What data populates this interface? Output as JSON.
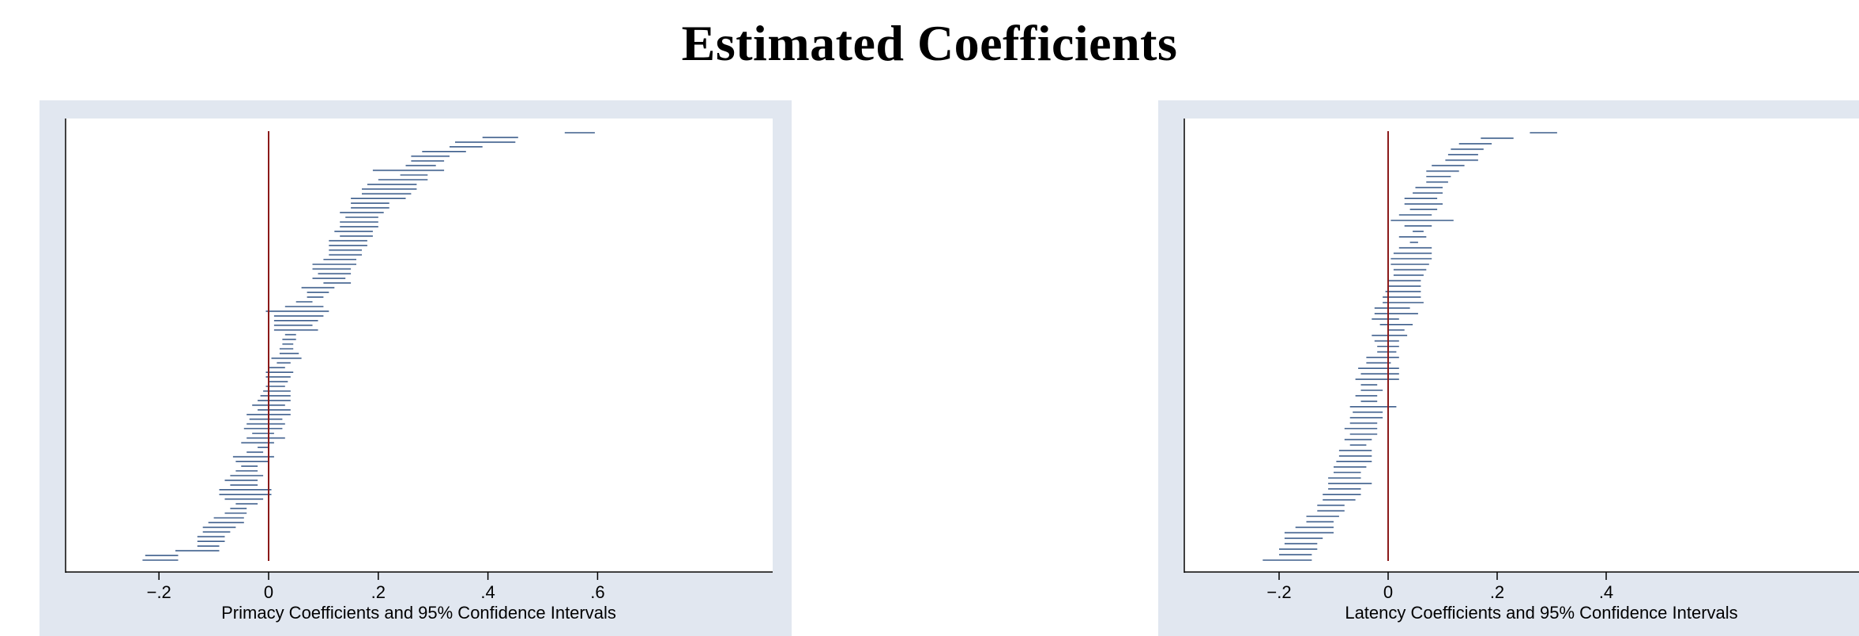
{
  "page": {
    "title": "Estimated Coefficients"
  },
  "colors": {
    "panel_bg": "#e1e7f0",
    "plot_bg": "#ffffff",
    "ci_line": "#3d5e8c",
    "zero_line": "#8b1a1a",
    "axis": "#000000"
  },
  "chart_data": [
    {
      "type": "interval",
      "title": "",
      "xlabel": "Primacy Coefficients and 95% Confidence Intervals",
      "ylabel": "",
      "xlim": [
        -0.25,
        0.615
      ],
      "xticks": [
        -0.2,
        0,
        0.2,
        0.4,
        0.6
      ],
      "xtick_labels": [
        "−.2",
        "0",
        ".2",
        ".4",
        ".6"
      ],
      "reference_line_x": 0,
      "grid": false,
      "note": "95% confidence intervals ordered top to bottom",
      "intervals": [
        [
          0.54,
          0.595
        ],
        [
          0.39,
          0.455
        ],
        [
          0.34,
          0.45
        ],
        [
          0.33,
          0.39
        ],
        [
          0.28,
          0.36
        ],
        [
          0.26,
          0.33
        ],
        [
          0.26,
          0.32
        ],
        [
          0.25,
          0.305
        ],
        [
          0.19,
          0.32
        ],
        [
          0.24,
          0.29
        ],
        [
          0.2,
          0.29
        ],
        [
          0.18,
          0.27
        ],
        [
          0.17,
          0.27
        ],
        [
          0.17,
          0.26
        ],
        [
          0.15,
          0.25
        ],
        [
          0.15,
          0.22
        ],
        [
          0.15,
          0.22
        ],
        [
          0.13,
          0.21
        ],
        [
          0.14,
          0.2
        ],
        [
          0.13,
          0.2
        ],
        [
          0.13,
          0.2
        ],
        [
          0.12,
          0.19
        ],
        [
          0.13,
          0.19
        ],
        [
          0.11,
          0.18
        ],
        [
          0.11,
          0.18
        ],
        [
          0.11,
          0.17
        ],
        [
          0.11,
          0.17
        ],
        [
          0.1,
          0.16
        ],
        [
          0.08,
          0.16
        ],
        [
          0.08,
          0.15
        ],
        [
          0.09,
          0.15
        ],
        [
          0.08,
          0.14
        ],
        [
          0.1,
          0.15
        ],
        [
          0.06,
          0.12
        ],
        [
          0.07,
          0.11
        ],
        [
          0.07,
          0.1
        ],
        [
          0.05,
          0.08
        ],
        [
          0.03,
          0.1
        ],
        [
          -0.005,
          0.11
        ],
        [
          0.01,
          0.1
        ],
        [
          0.01,
          0.09
        ],
        [
          0.01,
          0.08
        ],
        [
          0.01,
          0.09
        ],
        [
          0.03,
          0.05
        ],
        [
          0.025,
          0.05
        ],
        [
          0.025,
          0.045
        ],
        [
          0.02,
          0.045
        ],
        [
          0.02,
          0.055
        ],
        [
          0.005,
          0.06
        ],
        [
          0.015,
          0.04
        ],
        [
          0.0,
          0.03
        ],
        [
          -0.005,
          0.045
        ],
        [
          -0.005,
          0.04
        ],
        [
          -0.0,
          0.035
        ],
        [
          -0.005,
          0.03
        ],
        [
          -0.01,
          0.04
        ],
        [
          -0.015,
          0.04
        ],
        [
          -0.02,
          0.04
        ],
        [
          -0.03,
          0.03
        ],
        [
          -0.02,
          0.04
        ],
        [
          -0.04,
          0.04
        ],
        [
          -0.035,
          0.025
        ],
        [
          -0.04,
          0.03
        ],
        [
          -0.045,
          0.025
        ],
        [
          -0.03,
          0.01
        ],
        [
          -0.04,
          0.03
        ],
        [
          -0.05,
          0.01
        ],
        [
          -0.02,
          0.0
        ],
        [
          -0.04,
          -0.01
        ],
        [
          -0.065,
          0.01
        ],
        [
          -0.06,
          0.0
        ],
        [
          -0.05,
          -0.02
        ],
        [
          -0.06,
          -0.02
        ],
        [
          -0.07,
          -0.01
        ],
        [
          -0.08,
          -0.02
        ],
        [
          -0.07,
          -0.02
        ],
        [
          -0.09,
          0.005
        ],
        [
          -0.09,
          0.005
        ],
        [
          -0.08,
          -0.01
        ],
        [
          -0.06,
          -0.02
        ],
        [
          -0.07,
          -0.04
        ],
        [
          -0.08,
          -0.04
        ],
        [
          -0.1,
          -0.045
        ],
        [
          -0.11,
          -0.045
        ],
        [
          -0.12,
          -0.06
        ],
        [
          -0.12,
          -0.07
        ],
        [
          -0.13,
          -0.08
        ],
        [
          -0.13,
          -0.08
        ],
        [
          -0.13,
          -0.09
        ],
        [
          -0.17,
          -0.09
        ],
        [
          -0.225,
          -0.165
        ],
        [
          -0.23,
          -0.165
        ]
      ]
    },
    {
      "type": "interval",
      "title": "",
      "xlabel": "Latency Coefficients and 95% Confidence Intervals",
      "ylabel": "",
      "xlim": [
        -0.25,
        0.58
      ],
      "xticks": [
        -0.2,
        0,
        0.2,
        0.4
      ],
      "xtick_labels": [
        "−.2",
        "0",
        ".2",
        ".4"
      ],
      "reference_line_x": 0,
      "grid": false,
      "note": "95% confidence intervals ordered top to bottom",
      "intervals": [
        [
          0.26,
          0.31
        ],
        [
          0.17,
          0.23
        ],
        [
          0.13,
          0.19
        ],
        [
          0.115,
          0.175
        ],
        [
          0.11,
          0.165
        ],
        [
          0.105,
          0.165
        ],
        [
          0.08,
          0.14
        ],
        [
          0.07,
          0.13
        ],
        [
          0.07,
          0.115
        ],
        [
          0.07,
          0.11
        ],
        [
          0.05,
          0.1
        ],
        [
          0.045,
          0.1
        ],
        [
          0.03,
          0.09
        ],
        [
          0.03,
          0.1
        ],
        [
          0.04,
          0.09
        ],
        [
          0.02,
          0.08
        ],
        [
          0.005,
          0.12
        ],
        [
          0.03,
          0.08
        ],
        [
          0.045,
          0.065
        ],
        [
          0.02,
          0.07
        ],
        [
          0.04,
          0.055
        ],
        [
          0.02,
          0.08
        ],
        [
          0.01,
          0.08
        ],
        [
          0.005,
          0.08
        ],
        [
          0.005,
          0.075
        ],
        [
          0.01,
          0.07
        ],
        [
          0.01,
          0.065
        ],
        [
          0.0,
          0.06
        ],
        [
          0.0,
          0.06
        ],
        [
          -0.005,
          0.06
        ],
        [
          -0.01,
          0.06
        ],
        [
          -0.01,
          0.065
        ],
        [
          -0.025,
          0.04
        ],
        [
          -0.025,
          0.055
        ],
        [
          -0.03,
          0.02
        ],
        [
          -0.015,
          0.045
        ],
        [
          0.0,
          0.03
        ],
        [
          -0.03,
          0.035
        ],
        [
          -0.025,
          0.02
        ],
        [
          -0.02,
          0.02
        ],
        [
          -0.02,
          0.015
        ],
        [
          -0.04,
          0.02
        ],
        [
          -0.04,
          0.005
        ],
        [
          -0.055,
          0.02
        ],
        [
          -0.05,
          0.02
        ],
        [
          -0.06,
          0.02
        ],
        [
          -0.05,
          -0.02
        ],
        [
          -0.05,
          -0.01
        ],
        [
          -0.06,
          -0.02
        ],
        [
          -0.05,
          -0.02
        ],
        [
          -0.07,
          0.015
        ],
        [
          -0.065,
          -0.01
        ],
        [
          -0.07,
          -0.01
        ],
        [
          -0.07,
          -0.02
        ],
        [
          -0.08,
          -0.02
        ],
        [
          -0.07,
          -0.02
        ],
        [
          -0.08,
          -0.03
        ],
        [
          -0.07,
          -0.04
        ],
        [
          -0.09,
          -0.03
        ],
        [
          -0.09,
          -0.03
        ],
        [
          -0.095,
          -0.03
        ],
        [
          -0.1,
          -0.04
        ],
        [
          -0.1,
          -0.05
        ],
        [
          -0.11,
          -0.05
        ],
        [
          -0.11,
          -0.03
        ],
        [
          -0.11,
          -0.05
        ],
        [
          -0.12,
          -0.05
        ],
        [
          -0.12,
          -0.06
        ],
        [
          -0.13,
          -0.08
        ],
        [
          -0.13,
          -0.08
        ],
        [
          -0.15,
          -0.09
        ],
        [
          -0.15,
          -0.1
        ],
        [
          -0.17,
          -0.1
        ],
        [
          -0.19,
          -0.1
        ],
        [
          -0.19,
          -0.12
        ],
        [
          -0.19,
          -0.13
        ],
        [
          -0.2,
          -0.13
        ],
        [
          -0.2,
          -0.14
        ],
        [
          -0.23,
          -0.14
        ]
      ]
    }
  ]
}
